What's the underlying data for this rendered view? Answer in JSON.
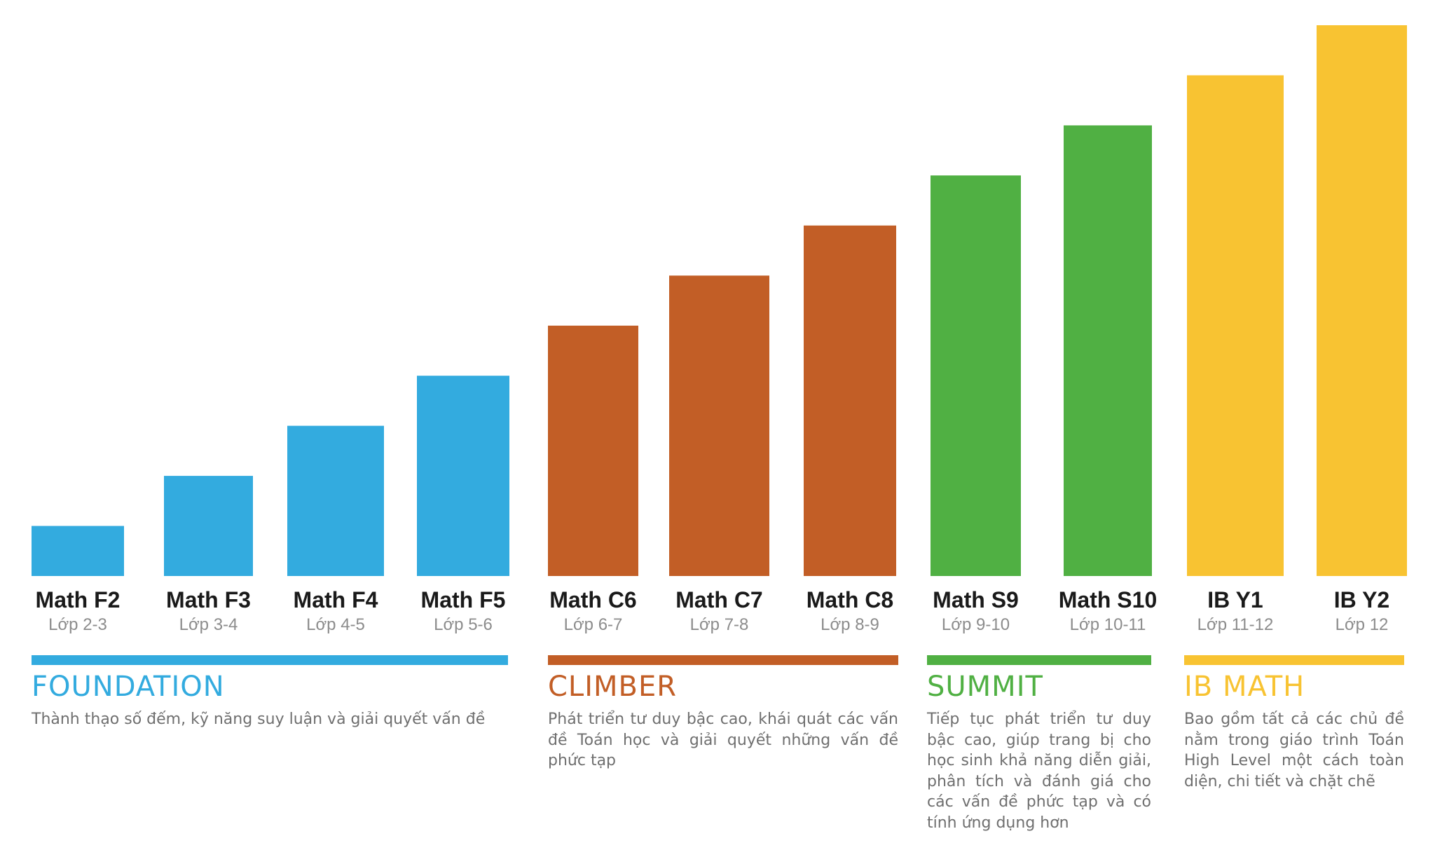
{
  "chart_data": {
    "type": "bar",
    "categories": [
      "Math F2",
      "Math F3",
      "Math F4",
      "Math F5",
      "Math C6",
      "Math C7",
      "Math C8",
      "Math S9",
      "Math S10",
      "IB Y1",
      "IB Y2"
    ],
    "grades": [
      "Lớp 2-3",
      "Lớp 3-4",
      "Lớp 4-5",
      "Lớp 5-6",
      "Lớp 6-7",
      "Lớp 7-8",
      "Lớp 8-9",
      "Lớp 9-10",
      "Lớp 10-11",
      "Lớp 11-12",
      "Lớp 12"
    ],
    "values": [
      1,
      2,
      3,
      4,
      5,
      6,
      7,
      8,
      9,
      10,
      11
    ],
    "bar_groups": [
      0,
      0,
      0,
      0,
      1,
      1,
      1,
      2,
      2,
      3,
      3
    ],
    "title": "",
    "xlabel": "",
    "ylabel": "",
    "ylim": [
      0,
      11
    ],
    "grid": false,
    "legend": "none",
    "colors": [
      "#33abdf",
      "#c25e26",
      "#50b043",
      "#f8c332"
    ]
  },
  "groups": [
    {
      "title": "FOUNDATION",
      "description": "Thành thạo số đếm, kỹ năng suy luận và giải quyết vấn đề",
      "color": "#33abdf"
    },
    {
      "title": "CLIMBER",
      "description": "Phát triển tư duy bậc cao, khái quát các vấn đề Toán học và giải quyết những vấn đề phức tạp",
      "color": "#c25e26"
    },
    {
      "title": "SUMMIT",
      "description": "Tiếp tục phát triển tư duy bậc cao,  giúp trang bị cho học sinh khả năng diễn giải, phân tích và đánh giá cho các vấn đề phức tạp và có tính ứng dụng hơn",
      "color": "#50b043"
    },
    {
      "title": "IB MATH",
      "description": "Bao gồm tất cả các chủ đề nằm trong giáo trình Toán High Level một cách toàn diện, chi tiết và chặt chẽ",
      "color": "#f8c332"
    }
  ]
}
